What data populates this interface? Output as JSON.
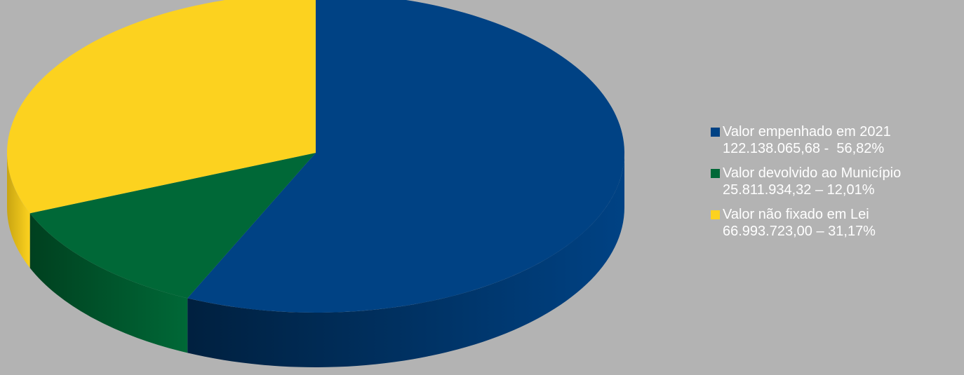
{
  "chart_data": {
    "type": "pie",
    "title": "",
    "start_angle_deg": 90,
    "direction": "clockwise",
    "slices": [
      {
        "label": "Valor empenhado em 2021",
        "value_text": "122.138.065,68 -  56,82%",
        "value": 122138065.68,
        "percent": 56.82,
        "color": "#004284",
        "side_color": "#00203f"
      },
      {
        "label": "Valor devolvido ao Município",
        "value_text": "25.811.934,32 – 12,01%",
        "value": 25811934.32,
        "percent": 12.01,
        "color": "#006837",
        "side_color": "#00401f"
      },
      {
        "label": "Valor não fixado em Lei",
        "value_text": "66.993.723,00 – 31,17%",
        "value": 66993723.0,
        "percent": 31.17,
        "color": "#fcd21f",
        "side_color": "#c9a512"
      }
    ],
    "legend": "right"
  },
  "colors": {
    "background": "#b3b3b3",
    "legend_text": "#ffffff"
  }
}
